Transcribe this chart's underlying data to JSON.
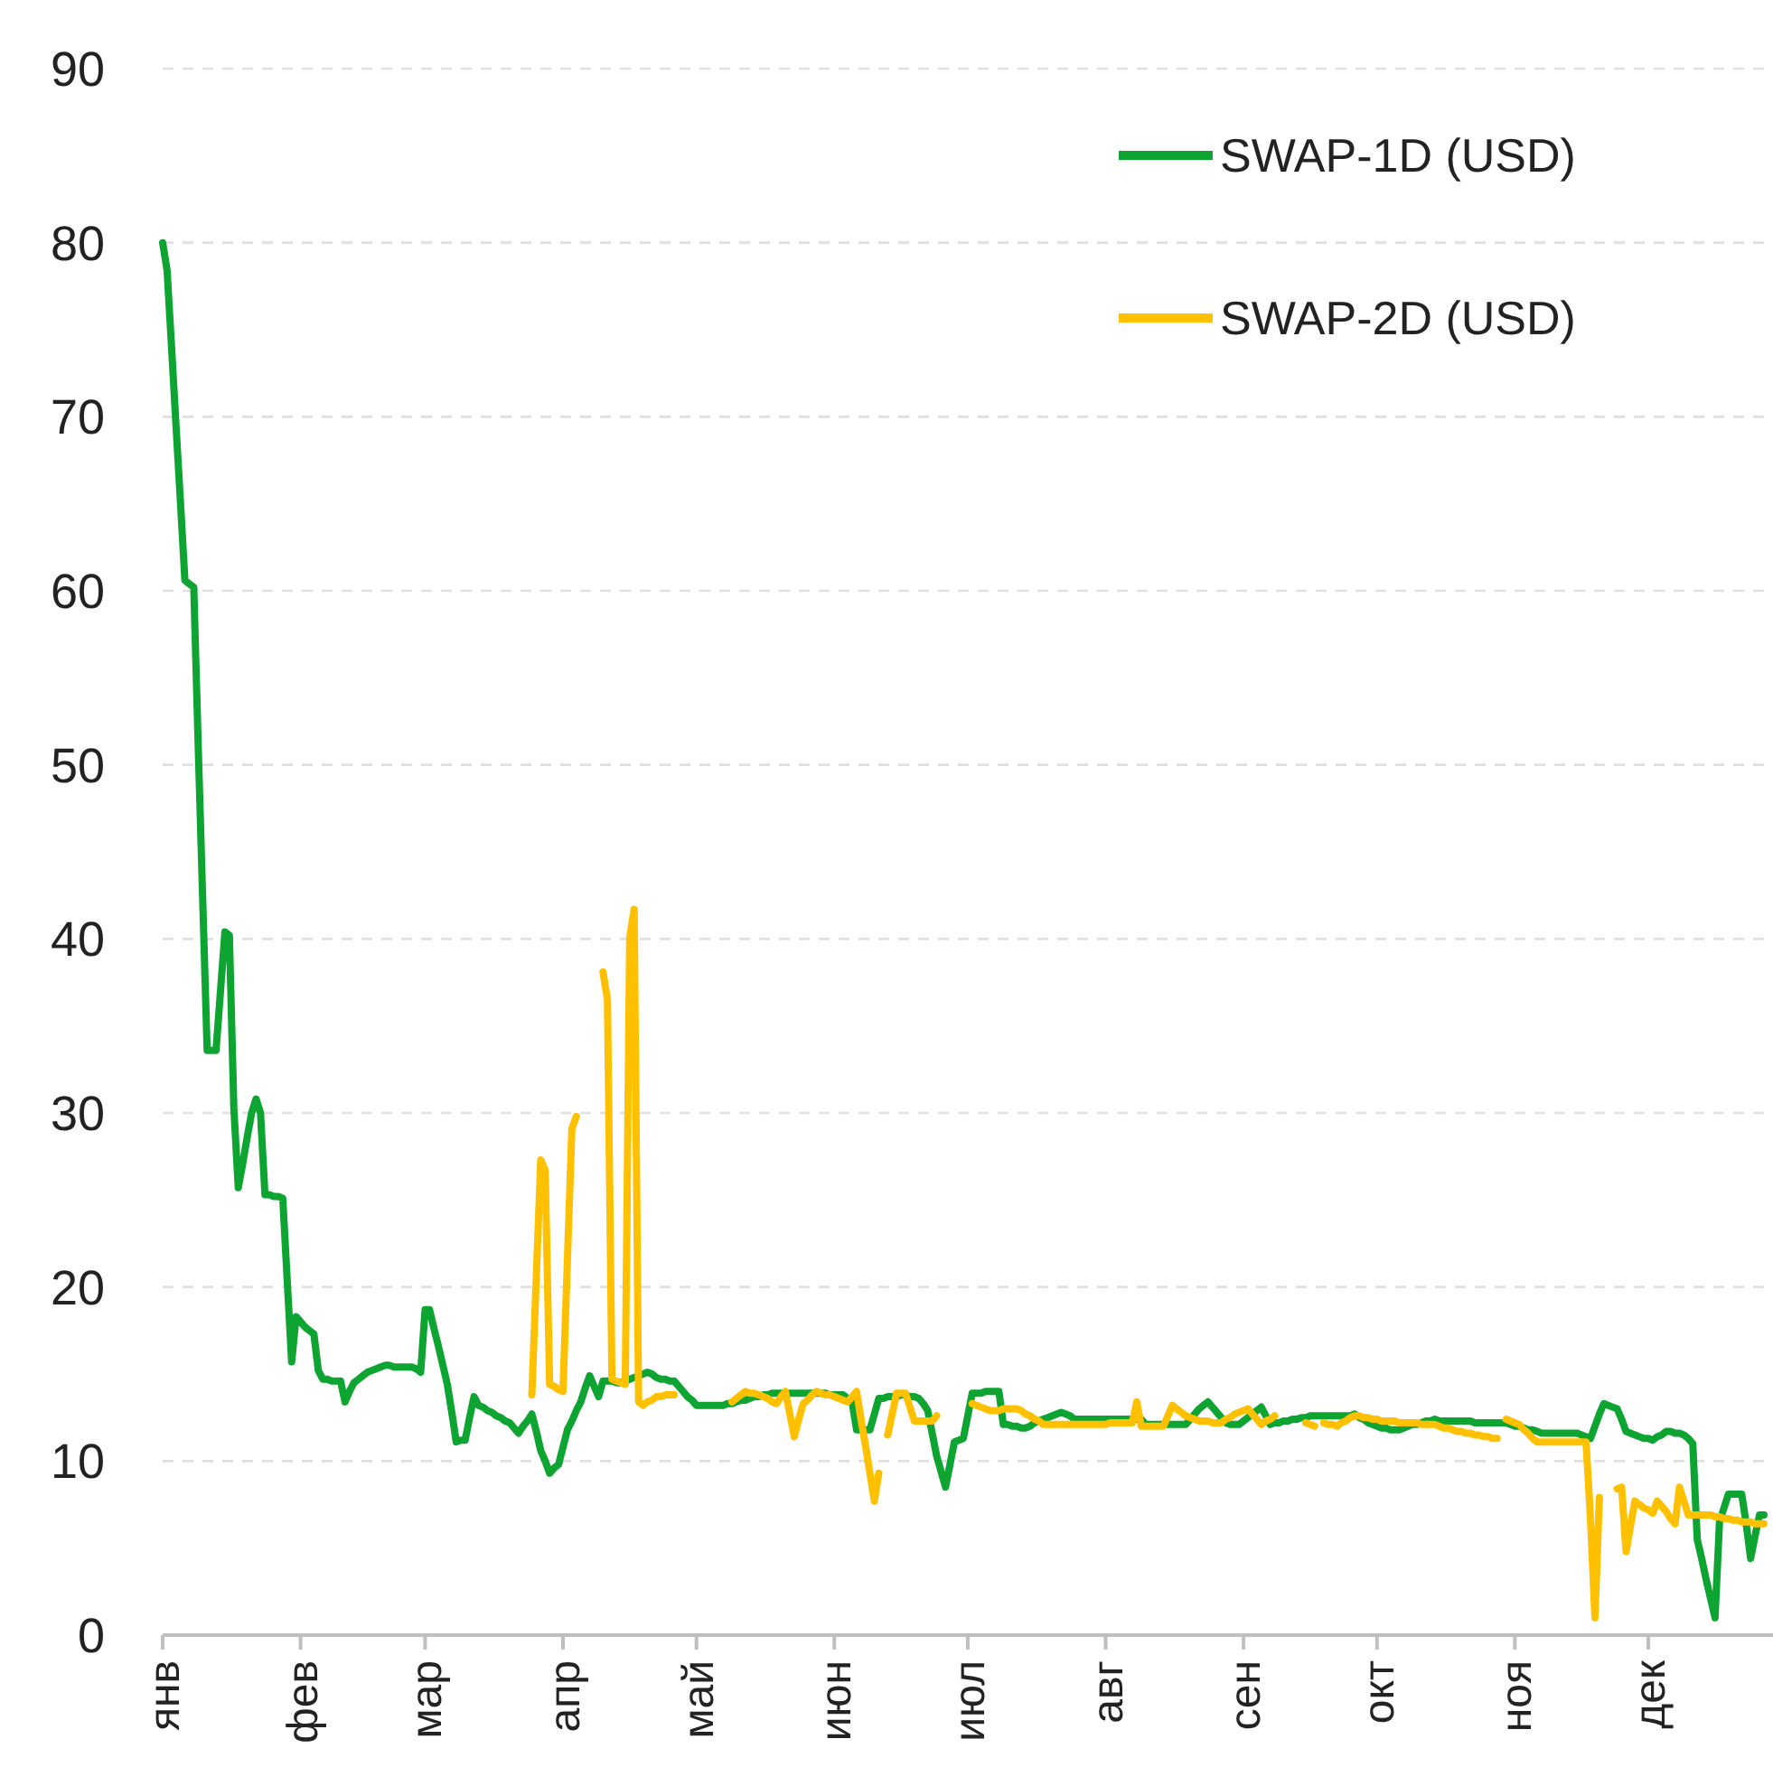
{
  "chart_data": {
    "type": "line",
    "categories": [
      "янв",
      null,
      null,
      null,
      null,
      null,
      null,
      null,
      null,
      null,
      null,
      null,
      null,
      null,
      null,
      null,
      null,
      null,
      null,
      null,
      null,
      null,
      null,
      null,
      null,
      null,
      null,
      null,
      null,
      null,
      null,
      "фев",
      null,
      null,
      null,
      null,
      null,
      null,
      null,
      null,
      null,
      null,
      null,
      null,
      null,
      null,
      null,
      null,
      null,
      null,
      null,
      null,
      null,
      null,
      null,
      null,
      null,
      null,
      null,
      "мар",
      null,
      null,
      null,
      null,
      null,
      null,
      null,
      null,
      null,
      null,
      null,
      null,
      null,
      null,
      null,
      null,
      null,
      null,
      null,
      null,
      null,
      null,
      null,
      null,
      null,
      null,
      null,
      null,
      null,
      null,
      "апр",
      null,
      null,
      null,
      null,
      null,
      null,
      null,
      null,
      null,
      null,
      null,
      null,
      null,
      null,
      null,
      null,
      null,
      null,
      null,
      null,
      null,
      null,
      null,
      null,
      null,
      null,
      null,
      null,
      null,
      "май",
      null,
      null,
      null,
      null,
      null,
      null,
      null,
      null,
      null,
      null,
      null,
      null,
      null,
      null,
      null,
      null,
      null,
      null,
      null,
      null,
      null,
      null,
      null,
      null,
      null,
      null,
      null,
      null,
      null,
      null,
      "июн",
      null,
      null,
      null,
      null,
      null,
      null,
      null,
      null,
      null,
      null,
      null,
      null,
      null,
      null,
      null,
      null,
      null,
      null,
      null,
      null,
      null,
      null,
      null,
      null,
      null,
      null,
      null,
      null,
      null,
      "июл",
      null,
      null,
      null,
      null,
      null,
      null,
      null,
      null,
      null,
      null,
      null,
      null,
      null,
      null,
      null,
      null,
      null,
      null,
      null,
      null,
      null,
      null,
      null,
      null,
      null,
      null,
      null,
      null,
      null,
      null,
      "авг",
      null,
      null,
      null,
      null,
      null,
      null,
      null,
      null,
      null,
      null,
      null,
      null,
      null,
      null,
      null,
      null,
      null,
      null,
      null,
      null,
      null,
      null,
      null,
      null,
      null,
      null,
      null,
      null,
      null,
      null,
      "сен",
      null,
      null,
      null,
      null,
      null,
      null,
      null,
      null,
      null,
      null,
      null,
      null,
      null,
      null,
      null,
      null,
      null,
      null,
      null,
      null,
      null,
      null,
      null,
      null,
      null,
      null,
      null,
      null,
      null,
      "окт",
      null,
      null,
      null,
      null,
      null,
      null,
      null,
      null,
      null,
      null,
      null,
      null,
      null,
      null,
      null,
      null,
      null,
      null,
      null,
      null,
      null,
      null,
      null,
      null,
      null,
      null,
      null,
      null,
      null,
      null,
      "ноя",
      null,
      null,
      null,
      null,
      null,
      null,
      null,
      null,
      null,
      null,
      null,
      null,
      null,
      null,
      null,
      null,
      null,
      null,
      null,
      null,
      null,
      null,
      null,
      null,
      null,
      null,
      null,
      null,
      null,
      "дек",
      null,
      null,
      null,
      null,
      null,
      null,
      null,
      null,
      null,
      null,
      null,
      null,
      null,
      null,
      null,
      null,
      null,
      null,
      null,
      null,
      null,
      null,
      null,
      null,
      null,
      null
    ],
    "ylim": [
      0,
      90
    ],
    "yticks": [
      0,
      10,
      20,
      30,
      40,
      50,
      60,
      70,
      80,
      90
    ],
    "grid": "y",
    "legend": "top right",
    "line_style": "solid",
    "marker": "none",
    "series": [
      {
        "name": "SWAP-1D (USD)",
        "color": "#0da432",
        "values": [
          80,
          78.4,
          74.0,
          69.5,
          65.1,
          60.6,
          60.4,
          60.2,
          51,
          42.3,
          33.6,
          33.6,
          33.6,
          37.0,
          40.4,
          40.2,
          30.3,
          25.7,
          27.1,
          28.6,
          30,
          30.8,
          30,
          25.3,
          25.3,
          25.2,
          25.2,
          25.1,
          20.4,
          15.7,
          18.3,
          18.0,
          17.7,
          17.5,
          17.3,
          15.2,
          14.7,
          14.7,
          14.6,
          14.6,
          14.6,
          13.4,
          14.0,
          14.5,
          14.7,
          14.9,
          15.1,
          15.2,
          15.3,
          15.4,
          15.5,
          15.5,
          15.4,
          15.4,
          15.4,
          15.4,
          15.4,
          15.3,
          15.1,
          18.7,
          18.7,
          17.6,
          16.6,
          15.5,
          14.4,
          12.8,
          11.1,
          11.2,
          11.2,
          12.5,
          13.7,
          13.2,
          13.1,
          12.9,
          12.8,
          12.6,
          12.5,
          12.3,
          12.2,
          11.9,
          11.6,
          12.0,
          12.3,
          12.7,
          11.7,
          10.6,
          10.0,
          9.3,
          9.6,
          9.8,
          10.8,
          11.8,
          12.3,
          12.9,
          13.4,
          14.2,
          14.9,
          14.3,
          13.7,
          14.6,
          14.6,
          14.6,
          14.5,
          14.5,
          14.6,
          14.7,
          14.8,
          14.9,
          15.0,
          15.1,
          15.0,
          14.8,
          14.7,
          14.7,
          14.6,
          14.6,
          14.3,
          14.0,
          13.7,
          13.5,
          13.2,
          13.2,
          13.2,
          13.2,
          13.2,
          13.2,
          13.2,
          13.3,
          13.3,
          13.4,
          13.5,
          13.5,
          13.6,
          13.7,
          13.7,
          13.8,
          13.8,
          13.9,
          13.9,
          13.9,
          13.9,
          13.9,
          13.9,
          13.9,
          13.9,
          13.9,
          13.9,
          13.9,
          13.9,
          13.9,
          13.8,
          13.8,
          13.8,
          13.8,
          13.6,
          13.4,
          11.8,
          11.8,
          11.8,
          11.8,
          12.7,
          13.6,
          13.6,
          13.7,
          13.7,
          13.7,
          13.8,
          13.8,
          13.7,
          13.7,
          13.6,
          13.3,
          12.9,
          11.6,
          10.3,
          9.4,
          8.5,
          9.8,
          11.1,
          11.2,
          11.3,
          12.6,
          13.9,
          13.9,
          13.9,
          14.0,
          14.0,
          14.0,
          14.0,
          12.1,
          12.1,
          12.0,
          12.0,
          11.9,
          11.9,
          12.0,
          12.2,
          12.3,
          12.4,
          12.5,
          12.6,
          12.7,
          12.8,
          12.7,
          12.6,
          12.4,
          12.4,
          12.4,
          12.4,
          12.4,
          12.4,
          12.4,
          12.4,
          12.4,
          12.4,
          12.4,
          12.4,
          12.4,
          12.4,
          12.4,
          12.4,
          12.1,
          12.1,
          12.1,
          12.1,
          12.1,
          12.1,
          12.1,
          12.1,
          12.1,
          12.1,
          12.4,
          12.7,
          13.0,
          13.2,
          13.4,
          13.1,
          12.8,
          12.5,
          12.2,
          12.1,
          12.1,
          12.1,
          12.3,
          12.5,
          12.7,
          12.9,
          13.1,
          12.6,
          12.1,
          12.2,
          12.2,
          12.3,
          12.3,
          12.4,
          12.4,
          12.5,
          12.5,
          12.6,
          12.6,
          12.6,
          12.6,
          12.6,
          12.6,
          12.6,
          12.6,
          12.6,
          12.6,
          12.7,
          12.5,
          12.4,
          12.2,
          12.1,
          12.0,
          11.9,
          11.9,
          11.8,
          11.8,
          11.8,
          11.9,
          12.0,
          12.1,
          12.1,
          12.2,
          12.3,
          12.3,
          12.4,
          12.3,
          12.3,
          12.3,
          12.3,
          12.3,
          12.3,
          12.3,
          12.3,
          12.2,
          12.2,
          12.2,
          12.2,
          12.2,
          12.2,
          12.2,
          12.2,
          12.1,
          12.0,
          12.0,
          11.9,
          11.8,
          11.8,
          11.7,
          11.6,
          11.6,
          11.6,
          11.6,
          11.6,
          11.6,
          11.6,
          11.6,
          11.6,
          11.5,
          11.4,
          11.3,
          12.0,
          12.7,
          13.3,
          13.2,
          13.1,
          13.0,
          12.4,
          11.7,
          11.6,
          11.5,
          11.4,
          11.3,
          11.3,
          11.2,
          11.4,
          11.5,
          11.7,
          11.7,
          11.6,
          11.6,
          11.5,
          11.3,
          11.0,
          5.5,
          4.4,
          3.2,
          2.1,
          1.0,
          6.5,
          7.3,
          8.1,
          8.1,
          8.1,
          8.1,
          6.4,
          4.4,
          5.7,
          6.9,
          6.9
        ]
      },
      {
        "name": "SWAP-2D (USD)",
        "color": "#ffc000",
        "values": [
          null,
          null,
          null,
          null,
          null,
          null,
          null,
          null,
          null,
          null,
          null,
          null,
          null,
          null,
          null,
          null,
          null,
          null,
          null,
          null,
          null,
          null,
          null,
          null,
          null,
          null,
          null,
          null,
          null,
          null,
          null,
          null,
          null,
          null,
          null,
          null,
          null,
          null,
          null,
          null,
          null,
          null,
          null,
          null,
          null,
          null,
          null,
          null,
          null,
          null,
          null,
          null,
          null,
          null,
          null,
          null,
          null,
          null,
          null,
          null,
          null,
          null,
          null,
          null,
          null,
          null,
          null,
          null,
          null,
          null,
          null,
          null,
          null,
          null,
          null,
          null,
          null,
          null,
          null,
          null,
          null,
          null,
          null,
          13.8,
          20.6,
          27.3,
          26.7,
          14.4,
          14.3,
          14.1,
          14.0,
          21.6,
          29.1,
          29.8,
          null,
          null,
          null,
          null,
          null,
          38.1,
          36.5,
          14.7,
          14.6,
          14.5,
          14.4,
          40.1,
          41.7,
          13.4,
          13.2,
          13.4,
          13.5,
          13.7,
          13.7,
          13.8,
          13.8,
          13.8,
          null,
          null,
          null,
          null,
          null,
          null,
          null,
          null,
          null,
          null,
          null,
          null,
          13.4,
          13.6,
          13.8,
          14.0,
          13.9,
          13.9,
          13.8,
          13.7,
          13.6,
          13.4,
          13.3,
          13.7,
          14.0,
          12.7,
          11.4,
          12.4,
          13.3,
          13.5,
          13.8,
          14.0,
          13.9,
          13.8,
          13.8,
          13.7,
          13.6,
          13.5,
          13.4,
          13.7,
          14.0,
          12.4,
          10.9,
          9.3,
          7.7,
          9.3,
          null,
          11.5,
          12.7,
          13.9,
          13.9,
          13.9,
          13.1,
          12.3,
          12.3,
          12.3,
          12.3,
          12.3,
          12.6,
          null,
          null,
          null,
          null,
          null,
          null,
          null,
          13.3,
          13.2,
          13.1,
          13.0,
          12.9,
          12.9,
          12.9,
          13.0,
          13.0,
          13.0,
          13.0,
          12.9,
          12.7,
          12.6,
          12.4,
          12.3,
          12.1,
          12.1,
          12.1,
          12.1,
          12.1,
          12.1,
          12.1,
          12.1,
          12.1,
          12.1,
          12.1,
          12.1,
          12.1,
          12.1,
          12.1,
          12.2,
          12.2,
          12.2,
          12.2,
          12.2,
          12.2,
          13.4,
          12.0,
          12.0,
          12.0,
          12.0,
          12.0,
          12.0,
          12.6,
          13.2,
          13.0,
          12.8,
          12.6,
          12.5,
          12.4,
          12.3,
          12.3,
          12.3,
          12.2,
          12.2,
          12.2,
          12.4,
          12.5,
          12.7,
          12.8,
          12.9,
          13.0,
          12.7,
          12.4,
          12.1,
          12.3,
          12.4,
          12.6,
          null,
          null,
          null,
          null,
          null,
          null,
          12.2,
          12.1,
          12.0,
          null,
          12.2,
          12.1,
          12.1,
          12.0,
          12.2,
          12.3,
          12.5,
          12.6,
          12.6,
          12.5,
          12.5,
          12.4,
          12.4,
          12.3,
          12.3,
          12.3,
          12.3,
          12.2,
          12.2,
          12.2,
          12.2,
          12.2,
          12.1,
          12.1,
          12.1,
          12.1,
          12.0,
          11.9,
          11.9,
          11.8,
          11.7,
          11.7,
          11.6,
          11.6,
          11.5,
          11.5,
          11.4,
          11.4,
          11.3,
          11.3,
          null,
          12.4,
          12.3,
          12.2,
          12.1,
          11.8,
          11.6,
          11.3,
          11.1,
          11.1,
          11.1,
          11.1,
          11.1,
          11.1,
          11.1,
          11.1,
          11.1,
          11.1,
          11.1,
          11.1,
          6.7,
          1.0,
          7.9,
          null,
          null,
          null,
          8.4,
          8.5,
          4.8,
          6.3,
          7.7,
          7.5,
          7.3,
          7.2,
          7.0,
          7.7,
          7.4,
          7.1,
          6.7,
          6.4,
          8.5,
          7.7,
          6.9,
          6.9,
          6.9,
          6.9,
          6.9,
          6.9,
          6.8,
          6.8,
          6.7,
          6.7,
          6.6,
          6.6,
          6.5,
          6.5,
          6.5,
          6.4,
          6.4,
          6.4
        ]
      }
    ]
  }
}
